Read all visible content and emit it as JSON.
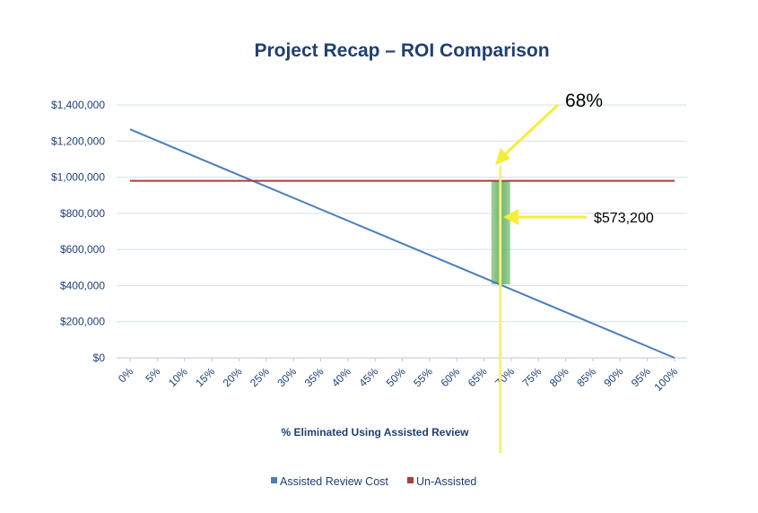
{
  "chart_data": {
    "type": "line",
    "title": "Project Recap – ROI Comparison",
    "xlabel": "% Eliminated Using Assisted Review",
    "ylabel": "",
    "ylim": [
      0,
      1400000
    ],
    "yticks": [
      {
        "value": 0,
        "label": "$0"
      },
      {
        "value": 200000,
        "label": "$200,000"
      },
      {
        "value": 400000,
        "label": "$400,000"
      },
      {
        "value": 600000,
        "label": "$600,000"
      },
      {
        "value": 800000,
        "label": "$800,000"
      },
      {
        "value": 1000000,
        "label": "$1,000,000"
      },
      {
        "value": 1200000,
        "label": "$1,200,000"
      },
      {
        "value": 1400000,
        "label": "$1,400,000"
      }
    ],
    "categories": [
      "0%",
      "5%",
      "10%",
      "15%",
      "20%",
      "25%",
      "30%",
      "35%",
      "40%",
      "45%",
      "50%",
      "55%",
      "60%",
      "65%",
      "70%",
      "75%",
      "80%",
      "85%",
      "90%",
      "95%",
      "100%"
    ],
    "x": [
      0,
      5,
      10,
      15,
      20,
      25,
      30,
      35,
      40,
      45,
      50,
      55,
      60,
      65,
      70,
      75,
      80,
      85,
      90,
      95,
      100
    ],
    "series": [
      {
        "name": "Assisted Review Cost",
        "color": "#4a7ebb",
        "values": [
          1265000,
          1201750,
          1138500,
          1075250,
          1012000,
          948750,
          885500,
          822250,
          759000,
          695750,
          632500,
          569250,
          506000,
          442750,
          379500,
          316250,
          253000,
          189750,
          126500,
          63250,
          0
        ]
      },
      {
        "name": "Un-Assisted",
        "color": "#b03a3a",
        "values": [
          980000,
          980000,
          980000,
          980000,
          980000,
          980000,
          980000,
          980000,
          980000,
          980000,
          980000,
          980000,
          980000,
          980000,
          980000,
          980000,
          980000,
          980000,
          980000,
          980000,
          980000
        ]
      }
    ],
    "grid": true,
    "legend": "bottom",
    "annotations": [
      {
        "label": "68%",
        "x": 68,
        "type": "vertical-line",
        "color": "#f5f07a"
      },
      {
        "label": "$573,200",
        "x": 68,
        "y_low": 406800,
        "y_high": 980000,
        "type": "band",
        "color": "#5cab5c"
      }
    ]
  }
}
